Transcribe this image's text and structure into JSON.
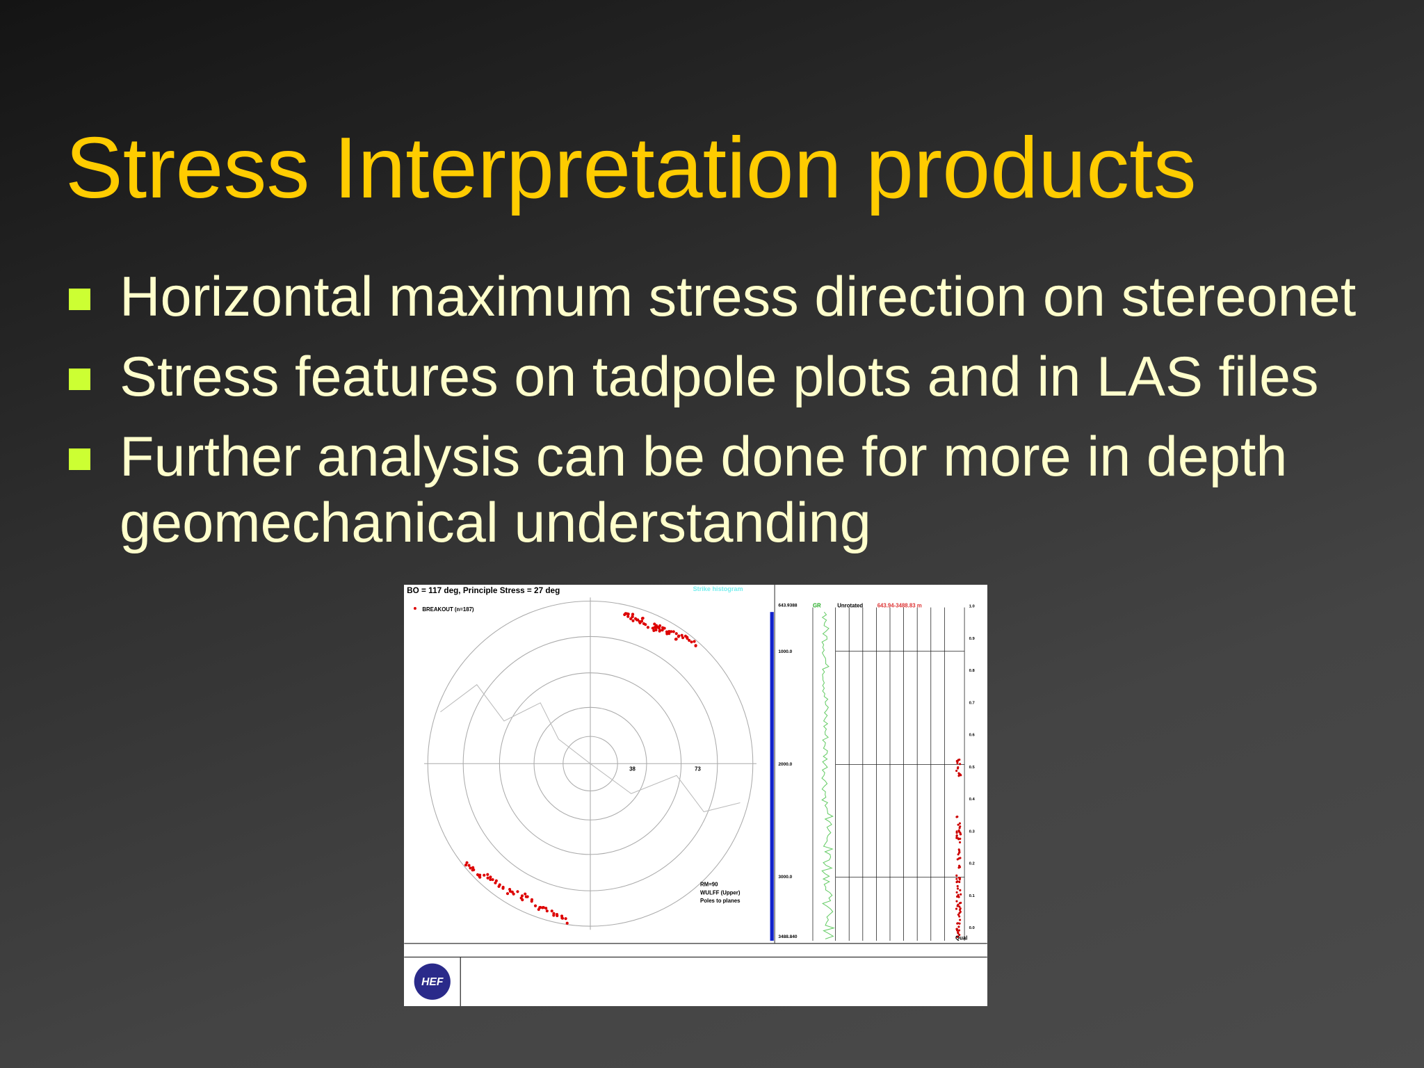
{
  "slide": {
    "title": "Stress Interpretation products",
    "bullets": [
      [
        "Horizontal maximum stress direction on stereonet"
      ],
      [
        "Stress features on tadpole plots and in LAS files"
      ],
      [
        "Further analysis can be done for more in depth",
        "geomechanical understanding"
      ]
    ],
    "figure": {
      "heading": "BO = 117 deg, Principle Stress = 27 deg",
      "legend": "BREAKOUT (n=187)",
      "histogram_label": "Strike histogram",
      "ring_labels": [
        "38",
        "73"
      ],
      "projection": [
        "RM=90",
        "WULFF (Upper)",
        "Poles to planes"
      ],
      "curve_label": "GR",
      "track_label": "Unrotated",
      "track_range": "643.94-3488.83 m",
      "depths": [
        "643.9388",
        "1000.0",
        "2000.0",
        "3000.0",
        "3488.840"
      ],
      "quality_scale": [
        "1.0",
        "0.9",
        "0.8",
        "0.7",
        "0.6",
        "0.5",
        "0.4",
        "0.3",
        "0.2",
        "0.1",
        "0.0"
      ],
      "quality_label": "Qual",
      "logo": "HEF"
    }
  }
}
